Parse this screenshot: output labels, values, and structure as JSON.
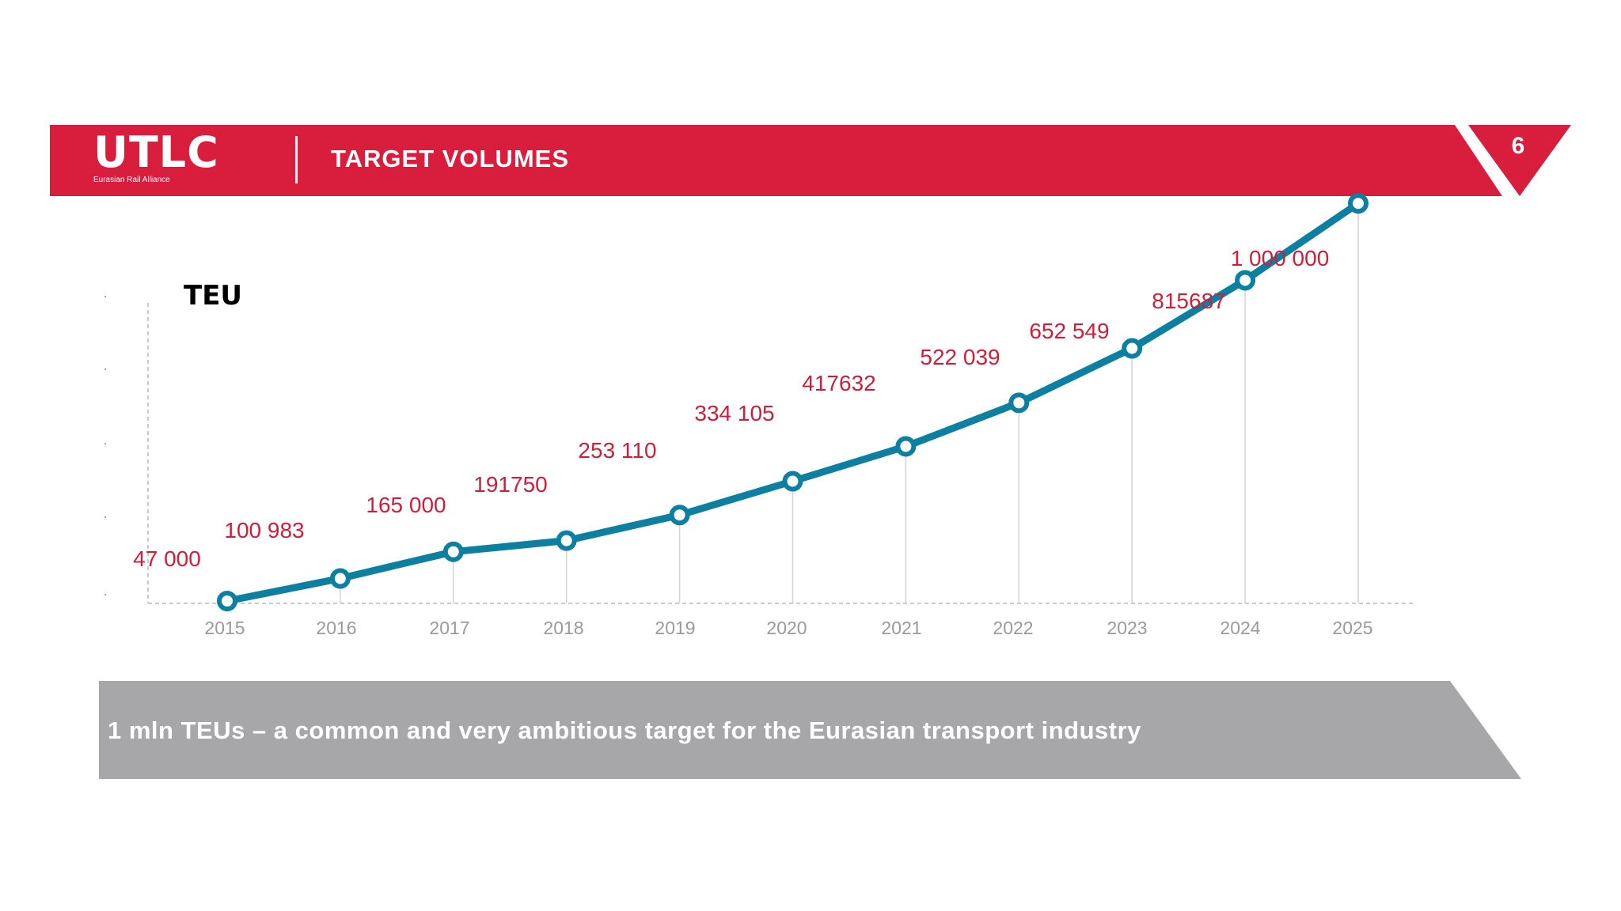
{
  "header": {
    "logo_text": "UTLC",
    "logo_subtitle": "Eurasian Rail Alliance",
    "title": "TARGET VOLUMES",
    "page_number": "6"
  },
  "colors": {
    "header_red": "#d81e3c",
    "line_teal": "#0d7fa0",
    "label_red": "#cc1f3c",
    "footer_gray": "#a7a7a9"
  },
  "chart_data": {
    "type": "line",
    "title": "",
    "ylabel": "TEU",
    "xlabel": "",
    "categories": [
      "2015",
      "2016",
      "2017",
      "2018",
      "2019",
      "2020",
      "2021",
      "2022",
      "2023",
      "2024",
      "2025"
    ],
    "values": [
      47000,
      100983,
      165000,
      191750,
      253110,
      334105,
      417632,
      522039,
      652549,
      815687,
      1000000
    ],
    "data_labels": [
      "47 000",
      "100 983",
      "165 000",
      "191750",
      "253 110",
      "334 105",
      "417632",
      "522 039",
      "652 549",
      "815687",
      "1 000 000"
    ],
    "grid": false,
    "legend": "none"
  },
  "footer": {
    "text": "1 mln TEUs – a common and very ambitious target for the Eurasian transport industry"
  }
}
